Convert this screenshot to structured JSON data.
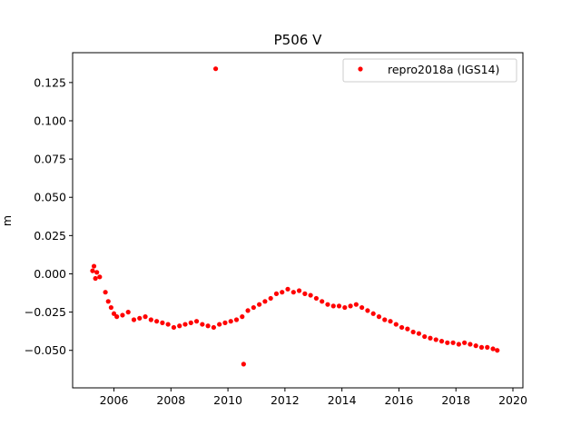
{
  "chart_data": {
    "type": "scatter",
    "title": "P506 V",
    "xlabel": "",
    "ylabel": "m",
    "xlim": [
      2004.55,
      2020.35
    ],
    "ylim": [
      -0.0745,
      0.1445
    ],
    "xticks": [
      2006,
      2008,
      2010,
      2012,
      2014,
      2016,
      2018,
      2020
    ],
    "xtick_labels": [
      "2006",
      "2008",
      "2010",
      "2012",
      "2014",
      "2016",
      "2018",
      "2020"
    ],
    "yticks": [
      -0.05,
      -0.025,
      0.0,
      0.025,
      0.05,
      0.075,
      0.1,
      0.125
    ],
    "ytick_labels": [
      "−0.050",
      "−0.025",
      "0.000",
      "0.025",
      "0.050",
      "0.075",
      "0.100",
      "0.125"
    ],
    "grid": false,
    "legend_position": "top-right",
    "series": [
      {
        "name": "repro2018a (IGS14)",
        "color": "#ff0000",
        "marker": "circle",
        "x": [
          2005.25,
          2005.3,
          2005.35,
          2005.4,
          2005.5,
          2005.7,
          2005.8,
          2005.9,
          2006.0,
          2006.1,
          2006.3,
          2006.5,
          2006.7,
          2006.9,
          2007.1,
          2007.3,
          2007.5,
          2007.7,
          2007.9,
          2008.1,
          2008.3,
          2008.5,
          2008.7,
          2008.9,
          2009.1,
          2009.3,
          2009.5,
          2009.57,
          2009.7,
          2009.9,
          2010.1,
          2010.3,
          2010.5,
          2010.55,
          2010.7,
          2010.9,
          2011.1,
          2011.3,
          2011.5,
          2011.7,
          2011.9,
          2012.1,
          2012.3,
          2012.5,
          2012.7,
          2012.9,
          2013.1,
          2013.3,
          2013.5,
          2013.7,
          2013.9,
          2014.1,
          2014.3,
          2014.5,
          2014.7,
          2014.9,
          2015.1,
          2015.3,
          2015.5,
          2015.7,
          2015.9,
          2016.1,
          2016.3,
          2016.5,
          2016.7,
          2016.9,
          2017.1,
          2017.3,
          2017.5,
          2017.7,
          2017.9,
          2018.1,
          2018.3,
          2018.5,
          2018.7,
          2018.9,
          2019.1,
          2019.3,
          2019.45
        ],
        "y": [
          0.002,
          0.005,
          -0.003,
          0.001,
          -0.002,
          -0.012,
          -0.018,
          -0.022,
          -0.026,
          -0.028,
          -0.027,
          -0.025,
          -0.03,
          -0.029,
          -0.028,
          -0.03,
          -0.031,
          -0.032,
          -0.033,
          -0.035,
          -0.034,
          -0.033,
          -0.032,
          -0.031,
          -0.033,
          -0.034,
          -0.035,
          0.134,
          -0.033,
          -0.032,
          -0.031,
          -0.03,
          -0.028,
          -0.059,
          -0.024,
          -0.022,
          -0.02,
          -0.018,
          -0.016,
          -0.013,
          -0.012,
          -0.01,
          -0.012,
          -0.011,
          -0.013,
          -0.014,
          -0.016,
          -0.018,
          -0.02,
          -0.021,
          -0.021,
          -0.022,
          -0.021,
          -0.02,
          -0.022,
          -0.024,
          -0.026,
          -0.028,
          -0.03,
          -0.031,
          -0.033,
          -0.035,
          -0.036,
          -0.038,
          -0.039,
          -0.041,
          -0.042,
          -0.043,
          -0.044,
          -0.045,
          -0.045,
          -0.046,
          -0.045,
          -0.046,
          -0.047,
          -0.048,
          -0.048,
          -0.049,
          -0.05
        ]
      }
    ]
  }
}
